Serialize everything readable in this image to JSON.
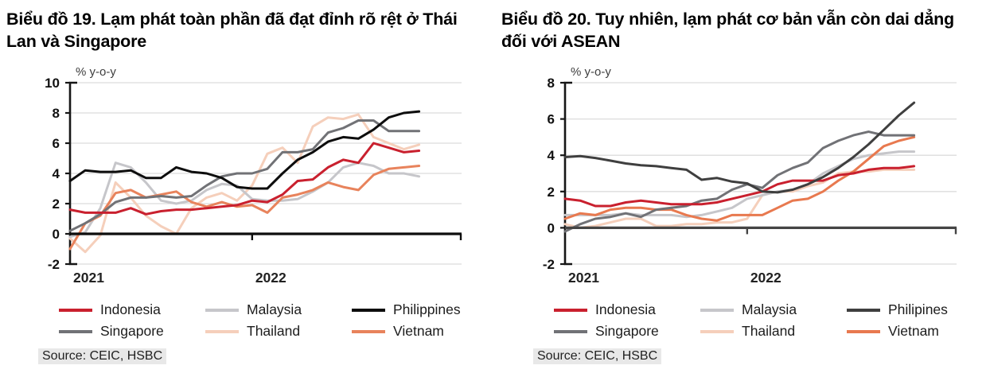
{
  "page": {
    "background": "#ffffff"
  },
  "chart_data": [
    {
      "type": "line",
      "title": "Biểu đồ 19. Lạm phát toàn phần đã đạt đỉnh rõ rệt ở Thái Lan và Singapore",
      "ylabel": "% y-o-y",
      "source": "Source: CEIC, HSBC",
      "x_period": {
        "start": "2021-01",
        "end": "2022-12",
        "freq": "monthly"
      },
      "x_tick_labels": [
        "2021",
        "2022"
      ],
      "ylim": [
        -2,
        10
      ],
      "yticks": [
        10,
        8,
        6,
        4,
        2,
        0,
        -2
      ],
      "grid": "horizontal",
      "legend_position": "bottom",
      "axis_color": "#0d0d0d",
      "series": [
        {
          "name": "Indonesia",
          "color": "#c9202e",
          "values": [
            1.6,
            1.4,
            1.4,
            1.4,
            1.7,
            1.3,
            1.5,
            1.6,
            1.6,
            1.7,
            1.8,
            1.9,
            2.2,
            2.1,
            2.6,
            3.5,
            3.6,
            4.4,
            4.9,
            4.7,
            6.0,
            5.7,
            5.4,
            5.5
          ]
        },
        {
          "name": "Malaysia",
          "color": "#c6c6ca",
          "values": [
            -0.2,
            0.1,
            1.7,
            4.7,
            4.4,
            3.4,
            2.2,
            2.0,
            2.2,
            2.9,
            3.3,
            3.2,
            2.3,
            2.2,
            2.2,
            2.3,
            2.8,
            3.4,
            4.4,
            4.7,
            4.5,
            4.0,
            4.0,
            3.8
          ]
        },
        {
          "name": "Philippines",
          "color": "#0d0d0d",
          "values": [
            3.5,
            4.2,
            4.1,
            4.1,
            4.2,
            3.7,
            3.7,
            4.4,
            4.1,
            4.0,
            3.7,
            3.1,
            3.0,
            3.0,
            4.0,
            4.9,
            5.4,
            6.1,
            6.4,
            6.3,
            6.9,
            7.7,
            8.0,
            8.1
          ]
        },
        {
          "name": "Singapore",
          "color": "#717276",
          "values": [
            0.2,
            0.7,
            1.3,
            2.1,
            2.4,
            2.4,
            2.5,
            2.4,
            2.5,
            3.2,
            3.8,
            4.0,
            4.0,
            4.3,
            5.4,
            5.4,
            5.6,
            6.7,
            7.0,
            7.5,
            7.5,
            6.8,
            6.8,
            6.8
          ]
        },
        {
          "name": "Thailand",
          "color": "#f5cfbb",
          "values": [
            -0.3,
            -1.2,
            -0.1,
            3.4,
            2.4,
            1.2,
            0.5,
            0.0,
            1.7,
            2.4,
            2.7,
            2.2,
            3.2,
            5.3,
            5.7,
            4.7,
            7.1,
            7.7,
            7.6,
            7.9,
            6.4,
            6.0,
            5.6,
            5.9
          ]
        },
        {
          "name": "Vietnam",
          "color": "#e8835c",
          "values": [
            -1.0,
            0.7,
            1.2,
            2.7,
            2.9,
            2.4,
            2.6,
            2.8,
            2.1,
            1.8,
            2.1,
            1.8,
            1.9,
            1.4,
            2.4,
            2.6,
            2.9,
            3.4,
            3.1,
            2.9,
            3.9,
            4.3,
            4.4,
            4.5
          ]
        }
      ]
    },
    {
      "type": "line",
      "title": "Biểu đồ 20. Tuy nhiên, lạm phát cơ bản vẫn còn dai dẳng đối với ASEAN",
      "ylabel": "% y-o-y",
      "source": "Source: CEIC, HSBC",
      "x_period": {
        "start": "2021-01",
        "end": "2022-12",
        "freq": "monthly"
      },
      "x_tick_labels": [
        "2021",
        "2022"
      ],
      "ylim": [
        -2,
        8
      ],
      "yticks": [
        8,
        6,
        4,
        2,
        0,
        -2
      ],
      "grid": "horizontal",
      "legend_position": "bottom",
      "axis_color": "#454545",
      "series": [
        {
          "name": "Indonesia",
          "color": "#c9202e",
          "values": [
            1.6,
            1.5,
            1.2,
            1.2,
            1.4,
            1.5,
            1.4,
            1.3,
            1.3,
            1.3,
            1.4,
            1.6,
            1.8,
            2.0,
            2.4,
            2.6,
            2.6,
            2.6,
            2.9,
            3.0,
            3.2,
            3.3,
            3.3,
            3.4
          ]
        },
        {
          "name": "Malaysia",
          "color": "#c6c6ca",
          "values": [
            0.7,
            0.7,
            0.7,
            0.7,
            0.8,
            0.7,
            0.7,
            0.7,
            0.6,
            0.7,
            0.9,
            1.1,
            1.6,
            1.8,
            2.0,
            2.1,
            2.4,
            3.0,
            3.4,
            3.8,
            4.0,
            4.1,
            4.2,
            4.2
          ]
        },
        {
          "name": "Philipines",
          "color": "#3f3f3f",
          "values": [
            3.9,
            3.95,
            3.85,
            3.7,
            3.55,
            3.45,
            3.4,
            3.3,
            3.2,
            2.65,
            2.75,
            2.55,
            2.45,
            2.0,
            1.95,
            2.1,
            2.4,
            2.8,
            3.3,
            3.9,
            4.6,
            5.4,
            6.2,
            6.9
          ]
        },
        {
          "name": "Singapore",
          "color": "#717276",
          "values": [
            -0.2,
            0.2,
            0.5,
            0.6,
            0.8,
            0.6,
            1.0,
            1.1,
            1.2,
            1.5,
            1.6,
            2.1,
            2.4,
            2.2,
            2.9,
            3.3,
            3.6,
            4.4,
            4.8,
            5.1,
            5.3,
            5.1,
            5.1,
            5.1
          ]
        },
        {
          "name": "Thailand",
          "color": "#f5cfbb",
          "values": [
            0.2,
            0.0,
            0.1,
            0.3,
            0.5,
            0.5,
            0.1,
            0.1,
            0.2,
            0.2,
            0.3,
            0.3,
            0.5,
            1.8,
            2.0,
            2.0,
            2.3,
            2.5,
            3.0,
            3.1,
            3.1,
            3.2,
            3.2,
            3.2
          ]
        },
        {
          "name": "Vietnam",
          "color": "#e8794f",
          "values": [
            0.5,
            0.8,
            0.7,
            1.0,
            1.1,
            1.1,
            1.0,
            1.0,
            0.7,
            0.5,
            0.4,
            0.7,
            0.7,
            0.7,
            1.1,
            1.5,
            1.6,
            2.0,
            2.6,
            3.1,
            3.8,
            4.5,
            4.8,
            5.0
          ]
        }
      ]
    }
  ]
}
